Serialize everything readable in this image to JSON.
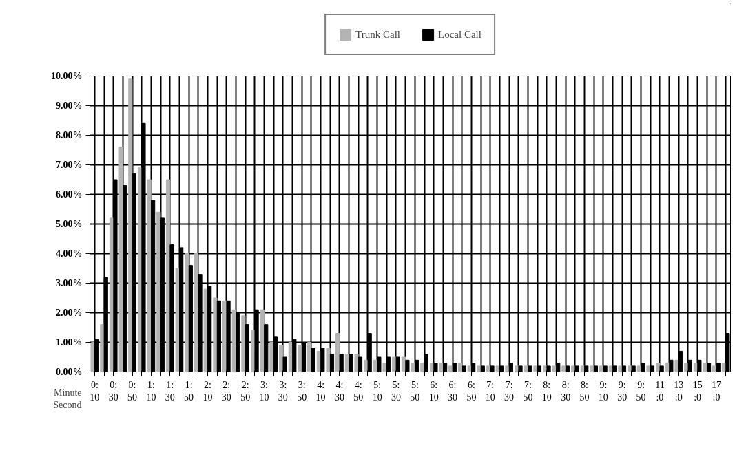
{
  "chart_data": {
    "type": "bar",
    "xlabel": "Minute\nSecond",
    "categories": [
      "0:\n10",
      null,
      "0:\n30",
      null,
      "0:\n50",
      null,
      "1:\n10",
      null,
      "1:\n30",
      null,
      "1:\n50",
      null,
      "2:\n10",
      null,
      "2:\n30",
      null,
      "2:\n50",
      null,
      "3:\n10",
      null,
      "3:\n30",
      null,
      "3:\n50",
      null,
      "4:\n10",
      null,
      "4:\n30",
      null,
      "4:\n50",
      null,
      "5:\n10",
      null,
      "5:\n30",
      null,
      "5:\n50",
      null,
      "6:\n10",
      null,
      "6:\n30",
      null,
      "6:\n50",
      null,
      "7:\n10",
      null,
      "7:\n30",
      null,
      "7:\n50",
      null,
      "8:\n10",
      null,
      "8:\n30",
      null,
      "8:\n50",
      null,
      "9:\n10",
      null,
      "9:\n30",
      null,
      "9:\n50",
      null,
      "11\n:0",
      null,
      "13\n:0",
      null,
      "15\n:0",
      null,
      "17\n:0",
      null
    ],
    "series": [
      {
        "name": "Trunk Call",
        "color": "#b4b4b4",
        "values": [
          1.0,
          1.6,
          5.2,
          7.6,
          9.9,
          6.9,
          6.5,
          5.4,
          6.5,
          3.5,
          4.0,
          4.0,
          2.8,
          2.5,
          2.4,
          2.1,
          1.9,
          1.4,
          2.1,
          1.0,
          0.9,
          1.0,
          0.9,
          1.0,
          0.7,
          0.8,
          1.3,
          0.6,
          0.6,
          0.4,
          0.4,
          0.3,
          0.5,
          0.5,
          0.3,
          0.3,
          0.3,
          0.3,
          0.2,
          0.3,
          0.2,
          0.2,
          0.2,
          0.2,
          0.2,
          0.2,
          0.2,
          0.2,
          0.2,
          0.2,
          0.2,
          0.2,
          0.2,
          0.2,
          0.2,
          0.2,
          0.2,
          0.2,
          0.2,
          0.2,
          0.3,
          0.3,
          0.4,
          0.3,
          0.3,
          0.3,
          0.2,
          0.3
        ]
      },
      {
        "name": "Local Call",
        "color": "#000000",
        "values": [
          1.1,
          3.2,
          6.5,
          6.3,
          6.7,
          8.4,
          5.8,
          5.2,
          4.3,
          4.2,
          3.6,
          3.3,
          2.9,
          2.4,
          2.4,
          2.0,
          1.6,
          2.1,
          1.6,
          1.2,
          0.5,
          1.1,
          1.0,
          0.8,
          0.8,
          0.6,
          0.6,
          0.6,
          0.5,
          1.3,
          0.5,
          0.5,
          0.5,
          0.4,
          0.4,
          0.6,
          0.3,
          0.3,
          0.3,
          0.2,
          0.3,
          0.2,
          0.2,
          0.2,
          0.3,
          0.2,
          0.2,
          0.2,
          0.2,
          0.3,
          0.2,
          0.2,
          0.2,
          0.2,
          0.2,
          0.2,
          0.2,
          0.2,
          0.3,
          0.2,
          0.2,
          0.4,
          0.7,
          0.4,
          0.4,
          0.3,
          0.3,
          1.3
        ]
      }
    ],
    "ylim": [
      0,
      10
    ],
    "yticks": [
      {
        "value": 0,
        "label": "0.00%"
      },
      {
        "value": 1,
        "label": "1.00%"
      },
      {
        "value": 2,
        "label": "2.00%"
      },
      {
        "value": 3,
        "label": "3.00%"
      },
      {
        "value": 4,
        "label": "4.00%"
      },
      {
        "value": 5,
        "label": "5.00%"
      },
      {
        "value": 6,
        "label": "6.00%"
      },
      {
        "value": 7,
        "label": "7.00%"
      },
      {
        "value": 8,
        "label": "8.00%"
      },
      {
        "value": 9,
        "label": "9.00%"
      },
      {
        "value": 10,
        "label": "10.00%"
      }
    ],
    "grid": true,
    "legend": "top"
  }
}
